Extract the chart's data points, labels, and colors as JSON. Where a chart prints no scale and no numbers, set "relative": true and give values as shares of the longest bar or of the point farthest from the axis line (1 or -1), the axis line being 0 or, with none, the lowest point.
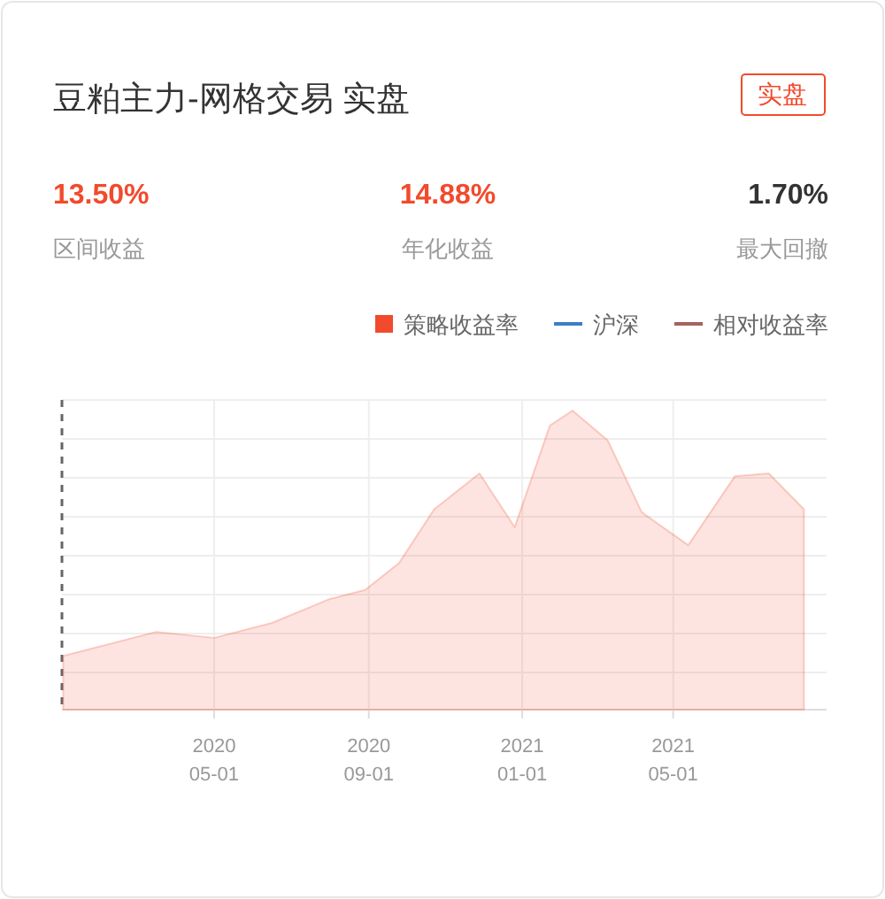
{
  "chart_data": [
    {
      "type": "other",
      "title": "豆粕主力-网格交易 实盘",
      "annotations": [
        "实盘",
        "13.50%",
        "区间收益",
        "14.88%",
        "年化收益",
        "1.70%",
        "最大回撤"
      ]
    },
    {
      "type": "area",
      "relative": true,
      "grid": true,
      "legend": "top right",
      "x": [
        "2020-01-02",
        "2020-03-16",
        "2020-05-01",
        "2020-06-16",
        "2020-08-01",
        "2020-08-29",
        "2020-09-25",
        "2020-10-23",
        "2020-11-28",
        "2020-12-26",
        "2021-01-23",
        "2021-02-10",
        "2021-03-10",
        "2021-04-06",
        "2021-05-13",
        "2021-06-19",
        "2021-07-16",
        "2021-08-13"
      ],
      "xlim": [
        "2020-01-01",
        "2021-08-31"
      ],
      "xticks": [
        {
          "value": "2020-05-01",
          "label": "2020\n05-01"
        },
        {
          "value": "2020-09-01",
          "label": "2020\n09-01"
        },
        {
          "value": "2021-01-01",
          "label": "2021\n01-01"
        },
        {
          "value": "2021-05-01",
          "label": "2021\n05-01"
        }
      ],
      "series": [
        {
          "name": "策略收益率",
          "color": "#f24a2c",
          "values": [
            0.18,
            0.26,
            0.24,
            0.29,
            0.37,
            0.4,
            0.49,
            0.67,
            0.79,
            0.61,
            0.95,
            1.0,
            0.9,
            0.66,
            0.55,
            0.78,
            0.79,
            0.67
          ]
        },
        {
          "name": "沪深",
          "color": "#3a7fc6",
          "type": "line",
          "values": [
            null,
            null,
            null,
            null,
            null,
            null,
            null,
            null,
            null,
            null,
            null,
            null,
            null,
            null,
            null,
            null,
            null,
            null
          ]
        },
        {
          "name": "相对收益率",
          "color": "#a6625e",
          "type": "line",
          "values": [
            null,
            null,
            null,
            null,
            null,
            null,
            null,
            null,
            null,
            null,
            null,
            null,
            null,
            null,
            null,
            null,
            null,
            null
          ]
        }
      ]
    }
  ]
}
